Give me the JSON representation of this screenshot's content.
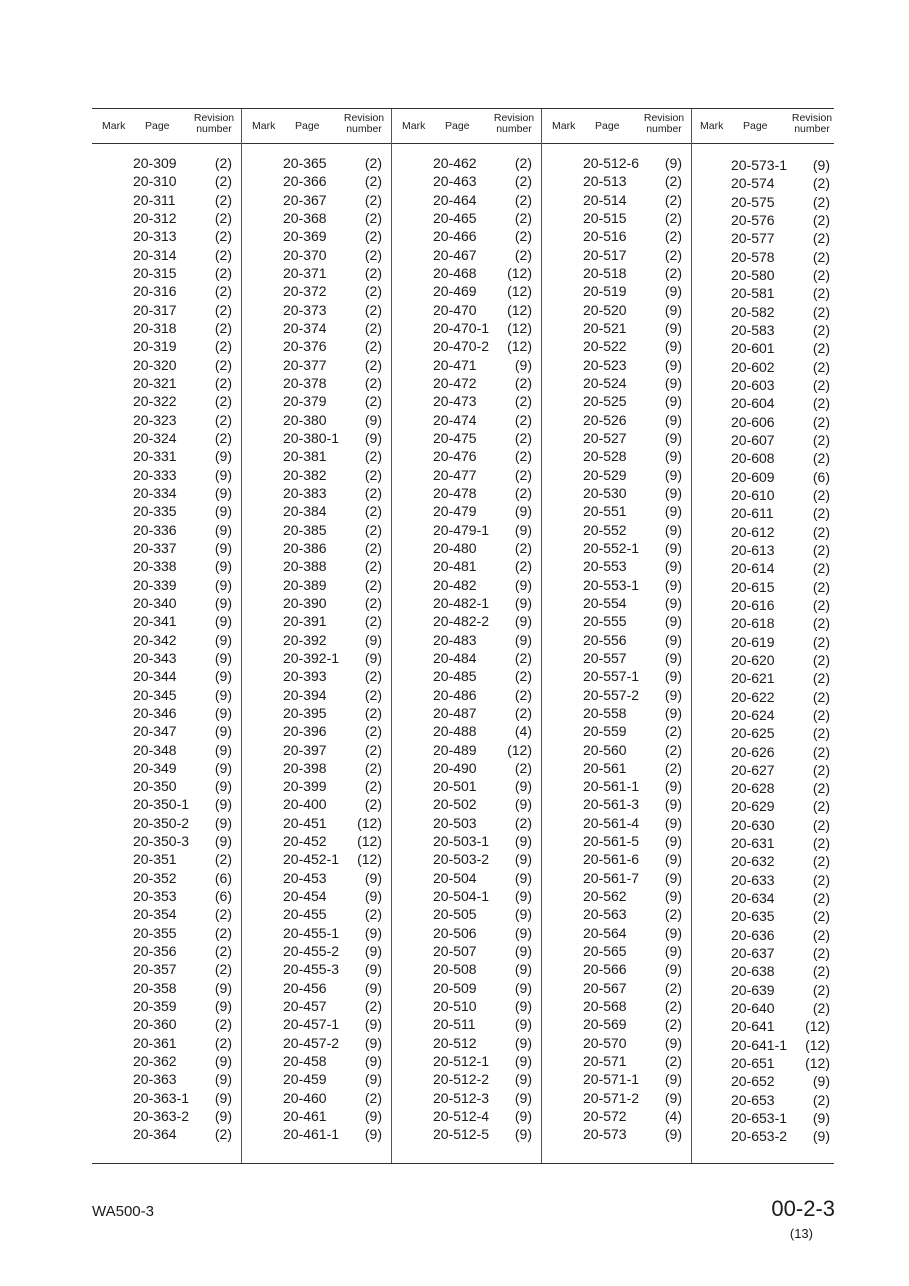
{
  "header": {
    "mark": "Mark",
    "page": "Page",
    "revision_line1": "Revision",
    "revision_line2": "number"
  },
  "columns": [
    [
      [
        "20-309",
        "(2)"
      ],
      [
        "20-310",
        "(2)"
      ],
      [
        "20-311",
        "(2)"
      ],
      [
        "20-312",
        "(2)"
      ],
      [
        "20-313",
        "(2)"
      ],
      [
        "20-314",
        "(2)"
      ],
      [
        "20-315",
        "(2)"
      ],
      [
        "20-316",
        "(2)"
      ],
      [
        "20-317",
        "(2)"
      ],
      [
        "20-318",
        "(2)"
      ],
      [
        "20-319",
        "(2)"
      ],
      [
        "20-320",
        "(2)"
      ],
      [
        "20-321",
        "(2)"
      ],
      [
        "20-322",
        "(2)"
      ],
      [
        "20-323",
        "(2)"
      ],
      [
        "20-324",
        "(2)"
      ],
      [
        "20-331",
        "(9)"
      ],
      [
        "20-333",
        "(9)"
      ],
      [
        "20-334",
        "(9)"
      ],
      [
        "20-335",
        "(9)"
      ],
      [
        "20-336",
        "(9)"
      ],
      [
        "20-337",
        "(9)"
      ],
      [
        "20-338",
        "(9)"
      ],
      [
        "20-339",
        "(9)"
      ],
      [
        "20-340",
        "(9)"
      ],
      [
        "20-341",
        "(9)"
      ],
      [
        "20-342",
        "(9)"
      ],
      [
        "20-343",
        "(9)"
      ],
      [
        "20-344",
        "(9)"
      ],
      [
        "20-345",
        "(9)"
      ],
      [
        "20-346",
        "(9)"
      ],
      [
        "20-347",
        "(9)"
      ],
      [
        "20-348",
        "(9)"
      ],
      [
        "20-349",
        "(9)"
      ],
      [
        "20-350",
        "(9)"
      ],
      [
        "20-350-1",
        "(9)"
      ],
      [
        "20-350-2",
        "(9)"
      ],
      [
        "20-350-3",
        "(9)"
      ],
      [
        "20-351",
        "(2)"
      ],
      [
        "20-352",
        "(6)"
      ],
      [
        "20-353",
        "(6)"
      ],
      [
        "20-354",
        "(2)"
      ],
      [
        "20-355",
        "(2)"
      ],
      [
        "20-356",
        "(2)"
      ],
      [
        "20-357",
        "(2)"
      ],
      [
        "20-358",
        "(9)"
      ],
      [
        "20-359",
        "(9)"
      ],
      [
        "20-360",
        "(2)"
      ],
      [
        "20-361",
        "(2)"
      ],
      [
        "20-362",
        "(9)"
      ],
      [
        "20-363",
        "(9)"
      ],
      [
        "20-363-1",
        "(9)"
      ],
      [
        "20-363-2",
        "(9)"
      ],
      [
        "20-364",
        "(2)"
      ]
    ],
    [
      [
        "20-365",
        "(2)"
      ],
      [
        "20-366",
        "(2)"
      ],
      [
        "20-367",
        "(2)"
      ],
      [
        "20-368",
        "(2)"
      ],
      [
        "20-369",
        "(2)"
      ],
      [
        "20-370",
        "(2)"
      ],
      [
        "20-371",
        "(2)"
      ],
      [
        "20-372",
        "(2)"
      ],
      [
        "20-373",
        "(2)"
      ],
      [
        "20-374",
        "(2)"
      ],
      [
        "20-376",
        "(2)"
      ],
      [
        "20-377",
        "(2)"
      ],
      [
        "20-378",
        "(2)"
      ],
      [
        "20-379",
        "(2)"
      ],
      [
        "20-380",
        "(9)"
      ],
      [
        "20-380-1",
        "(9)"
      ],
      [
        "20-381",
        "(2)"
      ],
      [
        "20-382",
        "(2)"
      ],
      [
        "20-383",
        "(2)"
      ],
      [
        "20-384",
        "(2)"
      ],
      [
        "20-385",
        "(2)"
      ],
      [
        "20-386",
        "(2)"
      ],
      [
        "20-388",
        "(2)"
      ],
      [
        "20-389",
        "(2)"
      ],
      [
        "20-390",
        "(2)"
      ],
      [
        "20-391",
        "(2)"
      ],
      [
        "20-392",
        "(9)"
      ],
      [
        "20-392-1",
        "(9)"
      ],
      [
        "20-393",
        "(2)"
      ],
      [
        "20-394",
        "(2)"
      ],
      [
        "20-395",
        "(2)"
      ],
      [
        "20-396",
        "(2)"
      ],
      [
        "20-397",
        "(2)"
      ],
      [
        "20-398",
        "(2)"
      ],
      [
        "20-399",
        "(2)"
      ],
      [
        "20-400",
        "(2)"
      ],
      [
        "20-451",
        "(12)"
      ],
      [
        "20-452",
        "(12)"
      ],
      [
        "20-452-1",
        "(12)"
      ],
      [
        "20-453",
        "(9)"
      ],
      [
        "20-454",
        "(9)"
      ],
      [
        "20-455",
        "(2)"
      ],
      [
        "20-455-1",
        "(9)"
      ],
      [
        "20-455-2",
        "(9)"
      ],
      [
        "20-455-3",
        "(9)"
      ],
      [
        "20-456",
        "(9)"
      ],
      [
        "20-457",
        "(2)"
      ],
      [
        "20-457-1",
        "(9)"
      ],
      [
        "20-457-2",
        "(9)"
      ],
      [
        "20-458",
        "(9)"
      ],
      [
        "20-459",
        "(9)"
      ],
      [
        "20-460",
        "(2)"
      ],
      [
        "20-461",
        "(9)"
      ],
      [
        "20-461-1",
        "(9)"
      ]
    ],
    [
      [
        "20-462",
        "(2)"
      ],
      [
        "20-463",
        "(2)"
      ],
      [
        "20-464",
        "(2)"
      ],
      [
        "20-465",
        "(2)"
      ],
      [
        "20-466",
        "(2)"
      ],
      [
        "20-467",
        "(2)"
      ],
      [
        "20-468",
        "(12)"
      ],
      [
        "20-469",
        "(12)"
      ],
      [
        "20-470",
        "(12)"
      ],
      [
        "20-470-1",
        "(12)"
      ],
      [
        "20-470-2",
        "(12)"
      ],
      [
        "20-471",
        "(9)"
      ],
      [
        "20-472",
        "(2)"
      ],
      [
        "20-473",
        "(2)"
      ],
      [
        "20-474",
        "(2)"
      ],
      [
        "20-475",
        "(2)"
      ],
      [
        "20-476",
        "(2)"
      ],
      [
        "20-477",
        "(2)"
      ],
      [
        "20-478",
        "(2)"
      ],
      [
        "20-479",
        "(9)"
      ],
      [
        "20-479-1",
        "(9)"
      ],
      [
        "20-480",
        "(2)"
      ],
      [
        "20-481",
        "(2)"
      ],
      [
        "20-482",
        "(9)"
      ],
      [
        "20-482-1",
        "(9)"
      ],
      [
        "20-482-2",
        "(9)"
      ],
      [
        "20-483",
        "(9)"
      ],
      [
        "20-484",
        "(2)"
      ],
      [
        "20-485",
        "(2)"
      ],
      [
        "20-486",
        "(2)"
      ],
      [
        "20-487",
        "(2)"
      ],
      [
        "20-488",
        "(4)"
      ],
      [
        "20-489",
        "(12)"
      ],
      [
        "20-490",
        "(2)"
      ],
      [
        "20-501",
        "(9)"
      ],
      [
        "20-502",
        "(9)"
      ],
      [
        "20-503",
        "(2)"
      ],
      [
        "20-503-1",
        "(9)"
      ],
      [
        "20-503-2",
        "(9)"
      ],
      [
        "20-504",
        "(9)"
      ],
      [
        "20-504-1",
        "(9)"
      ],
      [
        "20-505",
        "(9)"
      ],
      [
        "20-506",
        "(9)"
      ],
      [
        "20-507",
        "(9)"
      ],
      [
        "20-508",
        "(9)"
      ],
      [
        "20-509",
        "(9)"
      ],
      [
        "20-510",
        "(9)"
      ],
      [
        "20-511",
        "(9)"
      ],
      [
        "20-512",
        "(9)"
      ],
      [
        "20-512-1",
        "(9)"
      ],
      [
        "20-512-2",
        "(9)"
      ],
      [
        "20-512-3",
        "(9)"
      ],
      [
        "20-512-4",
        "(9)"
      ],
      [
        "20-512-5",
        "(9)"
      ]
    ],
    [
      [
        "20-512-6",
        "(9)"
      ],
      [
        "20-513",
        "(2)"
      ],
      [
        "20-514",
        "(2)"
      ],
      [
        "20-515",
        "(2)"
      ],
      [
        "20-516",
        "(2)"
      ],
      [
        "20-517",
        "(2)"
      ],
      [
        "20-518",
        "(2)"
      ],
      [
        "20-519",
        "(9)"
      ],
      [
        "20-520",
        "(9)"
      ],
      [
        "20-521",
        "(9)"
      ],
      [
        "20-522",
        "(9)"
      ],
      [
        "20-523",
        "(9)"
      ],
      [
        "20-524",
        "(9)"
      ],
      [
        "20-525",
        "(9)"
      ],
      [
        "20-526",
        "(9)"
      ],
      [
        "20-527",
        "(9)"
      ],
      [
        "20-528",
        "(9)"
      ],
      [
        "20-529",
        "(9)"
      ],
      [
        "20-530",
        "(9)"
      ],
      [
        "20-551",
        "(9)"
      ],
      [
        "20-552",
        "(9)"
      ],
      [
        "20-552-1",
        "(9)"
      ],
      [
        "20-553",
        "(9)"
      ],
      [
        "20-553-1",
        "(9)"
      ],
      [
        "20-554",
        "(9)"
      ],
      [
        "20-555",
        "(9)"
      ],
      [
        "20-556",
        "(9)"
      ],
      [
        "20-557",
        "(9)"
      ],
      [
        "20-557-1",
        "(9)"
      ],
      [
        "20-557-2",
        "(9)"
      ],
      [
        "20-558",
        "(9)"
      ],
      [
        "20-559",
        "(2)"
      ],
      [
        "20-560",
        "(2)"
      ],
      [
        "20-561",
        "(2)"
      ],
      [
        "20-561-1",
        "(9)"
      ],
      [
        "20-561-3",
        "(9)"
      ],
      [
        "20-561-4",
        "(9)"
      ],
      [
        "20-561-5",
        "(9)"
      ],
      [
        "20-561-6",
        "(9)"
      ],
      [
        "20-561-7",
        "(9)"
      ],
      [
        "20-562",
        "(9)"
      ],
      [
        "20-563",
        "(2)"
      ],
      [
        "20-564",
        "(9)"
      ],
      [
        "20-565",
        "(9)"
      ],
      [
        "20-566",
        "(9)"
      ],
      [
        "20-567",
        "(2)"
      ],
      [
        "20-568",
        "(2)"
      ],
      [
        "20-569",
        "(2)"
      ],
      [
        "20-570",
        "(9)"
      ],
      [
        "20-571",
        "(2)"
      ],
      [
        "20-571-1",
        "(9)"
      ],
      [
        "20-571-2",
        "(9)"
      ],
      [
        "20-572",
        "(4)"
      ],
      [
        "20-573",
        "(9)"
      ]
    ],
    [
      [
        "20-573-1",
        "(9)"
      ],
      [
        "20-574",
        "(2)"
      ],
      [
        "20-575",
        "(2)"
      ],
      [
        "20-576",
        "(2)"
      ],
      [
        "20-577",
        "(2)"
      ],
      [
        "20-578",
        "(2)"
      ],
      [
        "20-580",
        "(2)"
      ],
      [
        "20-581",
        "(2)"
      ],
      [
        "20-582",
        "(2)"
      ],
      [
        "20-583",
        "(2)"
      ],
      [
        "20-601",
        "(2)"
      ],
      [
        "20-602",
        "(2)"
      ],
      [
        "20-603",
        "(2)"
      ],
      [
        "20-604",
        "(2)"
      ],
      [
        "20-606",
        "(2)"
      ],
      [
        "20-607",
        "(2)"
      ],
      [
        "20-608",
        "(2)"
      ],
      [
        "20-609",
        "(6)"
      ],
      [
        "20-610",
        "(2)"
      ],
      [
        "20-611",
        "(2)"
      ],
      [
        "20-612",
        "(2)"
      ],
      [
        "20-613",
        "(2)"
      ],
      [
        "20-614",
        "(2)"
      ],
      [
        "20-615",
        "(2)"
      ],
      [
        "20-616",
        "(2)"
      ],
      [
        "20-618",
        "(2)"
      ],
      [
        "20-619",
        "(2)"
      ],
      [
        "20-620",
        "(2)"
      ],
      [
        "20-621",
        "(2)"
      ],
      [
        "20-622",
        "(2)"
      ],
      [
        "20-624",
        "(2)"
      ],
      [
        "20-625",
        "(2)"
      ],
      [
        "20-626",
        "(2)"
      ],
      [
        "20-627",
        "(2)"
      ],
      [
        "20-628",
        "(2)"
      ],
      [
        "20-629",
        "(2)"
      ],
      [
        "20-630",
        "(2)"
      ],
      [
        "20-631",
        "(2)"
      ],
      [
        "20-632",
        "(2)"
      ],
      [
        "20-633",
        "(2)"
      ],
      [
        "20-634",
        "(2)"
      ],
      [
        "20-635",
        "(2)"
      ],
      [
        "20-636",
        "(2)"
      ],
      [
        "20-637",
        "(2)"
      ],
      [
        "20-638",
        "(2)"
      ],
      [
        "20-639",
        "(2)"
      ],
      [
        "20-640",
        "(2)"
      ],
      [
        "20-641",
        "(12)"
      ],
      [
        "20-641-1",
        "(12)"
      ],
      [
        "20-651",
        "(12)"
      ],
      [
        "20-652",
        "(9)"
      ],
      [
        "20-653",
        "(2)"
      ],
      [
        "20-653-1",
        "(9)"
      ],
      [
        "20-653-2",
        "(9)"
      ]
    ]
  ],
  "footer": {
    "model": "WA500-3",
    "page_number": "00-2-3",
    "revision": "(13)"
  }
}
